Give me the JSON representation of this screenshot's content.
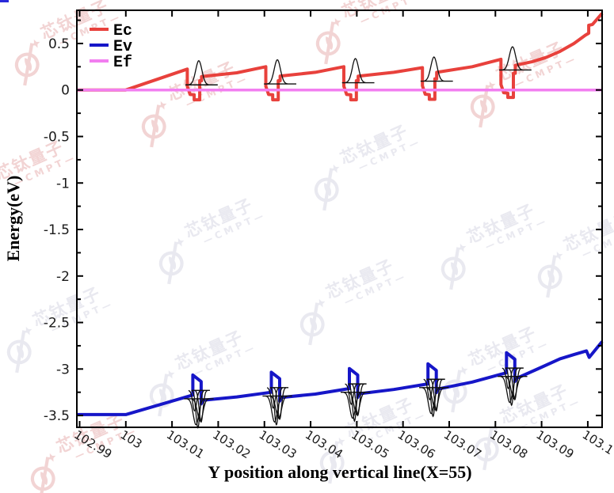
{
  "watermark": {
    "line1": "芯钛量子",
    "line2": "—CMPT—"
  },
  "decorations": {
    "corner_dash_color": "#2a2ada"
  },
  "chart_data": {
    "type": "line",
    "title": "",
    "xlabel": "Y position along vertical line(X=55)",
    "ylabel": "Energy(eV)",
    "xlim": [
      102.9894,
      103.1031
    ],
    "ylim": [
      -3.627,
      0.857
    ],
    "grid": false,
    "frame_color": "#000000",
    "x_ticks": {
      "values": [
        102.99,
        103,
        103.01,
        103.02,
        103.03,
        103.04,
        103.05,
        103.06,
        103.07,
        103.08,
        103.09,
        103.1
      ],
      "labels": [
        "102.99",
        "103",
        "103.01",
        "103.02",
        "103.03",
        "103.04",
        "103.05",
        "103.06",
        "103.07",
        "103.08",
        "103.09",
        "103.1"
      ]
    },
    "y_ticks": {
      "values": [
        0.5,
        0,
        -0.5,
        -1,
        -1.5,
        -2,
        -2.5,
        -3,
        -3.5
      ],
      "labels": [
        "0.5",
        "0",
        "-0.5",
        "-1",
        "-1.5",
        "-2",
        "-2.5",
        "-3",
        "-3.5"
      ]
    },
    "y_minor_values": [
      0.75,
      0.25,
      -0.25,
      -0.75,
      -1.25,
      -1.75,
      -2.25,
      -2.75,
      -3.25
    ],
    "legend": {
      "position": "upper-left",
      "entries": [
        {
          "label": "Ec",
          "color": "#e8413c"
        },
        {
          "label": "Ev",
          "color": "#1616c8"
        },
        {
          "label": "Ef",
          "color": "#f27ef0"
        }
      ]
    },
    "series": [
      {
        "name": "Ec",
        "color": "#e8413c",
        "width": 4,
        "points": [
          [
            102.9894,
            0
          ],
          [
            103.0,
            0
          ],
          [
            103.0133,
            0.225
          ],
          [
            103.0133,
            0.04
          ],
          [
            103.0139,
            -0.048
          ],
          [
            103.0148,
            -0.052
          ],
          [
            103.0148,
            -0.105
          ],
          [
            103.016,
            -0.105
          ],
          [
            103.016,
            0.1
          ],
          [
            103.0164,
            0.1
          ],
          [
            103.0164,
            0.145
          ],
          [
            103.024,
            0.185
          ],
          [
            103.0303,
            0.25
          ],
          [
            103.0303,
            0.04
          ],
          [
            103.0309,
            -0.048
          ],
          [
            103.0318,
            -0.052
          ],
          [
            103.0318,
            -0.105
          ],
          [
            103.033,
            -0.105
          ],
          [
            103.033,
            0.1
          ],
          [
            103.0334,
            0.1
          ],
          [
            103.0334,
            0.15
          ],
          [
            103.041,
            0.19
          ],
          [
            103.0472,
            0.25
          ],
          [
            103.0472,
            0.04
          ],
          [
            103.0478,
            -0.048
          ],
          [
            103.0487,
            -0.052
          ],
          [
            103.0487,
            -0.105
          ],
          [
            103.0499,
            -0.105
          ],
          [
            103.0499,
            0.1
          ],
          [
            103.0503,
            0.1
          ],
          [
            103.0503,
            0.148
          ],
          [
            103.058,
            0.19
          ],
          [
            103.0642,
            0.24
          ],
          [
            103.0642,
            0.045
          ],
          [
            103.0648,
            -0.045
          ],
          [
            103.0657,
            -0.05
          ],
          [
            103.0657,
            -0.1
          ],
          [
            103.0669,
            -0.1
          ],
          [
            103.0669,
            0.12
          ],
          [
            103.0673,
            0.12
          ],
          [
            103.0673,
            0.19
          ],
          [
            103.075,
            0.25
          ],
          [
            103.0812,
            0.33
          ],
          [
            103.0812,
            0.06
          ],
          [
            103.0818,
            -0.03
          ],
          [
            103.0827,
            -0.035
          ],
          [
            103.0827,
            -0.08
          ],
          [
            103.0839,
            -0.08
          ],
          [
            103.0839,
            0.18
          ],
          [
            103.0843,
            0.18
          ],
          [
            103.0843,
            0.265
          ],
          [
            103.088,
            0.305
          ],
          [
            103.091,
            0.35
          ],
          [
            103.094,
            0.415
          ],
          [
            103.097,
            0.5
          ],
          [
            103.0995,
            0.59
          ],
          [
            103.1002,
            0.61
          ],
          [
            103.1002,
            0.695
          ],
          [
            103.101,
            0.705
          ],
          [
            103.1031,
            0.825
          ]
        ]
      },
      {
        "name": "Ev",
        "color": "#1616c8",
        "width": 4,
        "points": [
          [
            102.9894,
            -3.49
          ],
          [
            103.0,
            -3.49
          ],
          [
            103.0145,
            -3.28
          ],
          [
            103.0145,
            -3.065
          ],
          [
            103.0163,
            -3.135
          ],
          [
            103.0163,
            -3.375
          ],
          [
            103.0167,
            -3.335
          ],
          [
            103.024,
            -3.3
          ],
          [
            103.0315,
            -3.25
          ],
          [
            103.0315,
            -3.035
          ],
          [
            103.0333,
            -3.105
          ],
          [
            103.0333,
            -3.345
          ],
          [
            103.0337,
            -3.305
          ],
          [
            103.041,
            -3.27
          ],
          [
            103.0484,
            -3.21
          ],
          [
            103.0484,
            -2.995
          ],
          [
            103.0502,
            -3.065
          ],
          [
            103.0502,
            -3.305
          ],
          [
            103.0506,
            -3.265
          ],
          [
            103.058,
            -3.22
          ],
          [
            103.0654,
            -3.16
          ],
          [
            103.0654,
            -2.945
          ],
          [
            103.0672,
            -3.015
          ],
          [
            103.0672,
            -3.255
          ],
          [
            103.0676,
            -3.215
          ],
          [
            103.075,
            -3.14
          ],
          [
            103.0824,
            -3.04
          ],
          [
            103.0824,
            -2.825
          ],
          [
            103.0842,
            -2.895
          ],
          [
            103.0842,
            -3.135
          ],
          [
            103.0846,
            -3.1
          ],
          [
            103.09,
            -2.98
          ],
          [
            103.094,
            -2.89
          ],
          [
            103.097,
            -2.845
          ],
          [
            103.0997,
            -2.805
          ],
          [
            103.1003,
            -2.875
          ],
          [
            103.1031,
            -2.705
          ]
        ]
      },
      {
        "name": "Ef",
        "color": "#f27ef0",
        "width": 3.5,
        "points": [
          [
            102.9894,
            0
          ],
          [
            103.1031,
            0
          ]
        ]
      }
    ],
    "wavefunctions": {
      "color": "#111111",
      "conduction": [
        {
          "center": 103.0156,
          "baseline": 0.055,
          "height": 0.26
        },
        {
          "center": 103.0326,
          "baseline": 0.065,
          "height": 0.26
        },
        {
          "center": 103.0495,
          "baseline": 0.078,
          "height": 0.26
        },
        {
          "center": 103.0665,
          "baseline": 0.095,
          "height": 0.26
        },
        {
          "center": 103.0835,
          "baseline": 0.215,
          "height": 0.25
        }
      ],
      "valence": [
        {
          "center": 103.0155,
          "upper_baseline": -3.23,
          "lower_baseline": -3.32
        },
        {
          "center": 103.0325,
          "upper_baseline": -3.2,
          "lower_baseline": -3.29
        },
        {
          "center": 103.0494,
          "upper_baseline": -3.16,
          "lower_baseline": -3.25
        },
        {
          "center": 103.0664,
          "upper_baseline": -3.11,
          "lower_baseline": -3.2
        },
        {
          "center": 103.0834,
          "upper_baseline": -2.99,
          "lower_baseline": -3.08
        }
      ]
    }
  }
}
